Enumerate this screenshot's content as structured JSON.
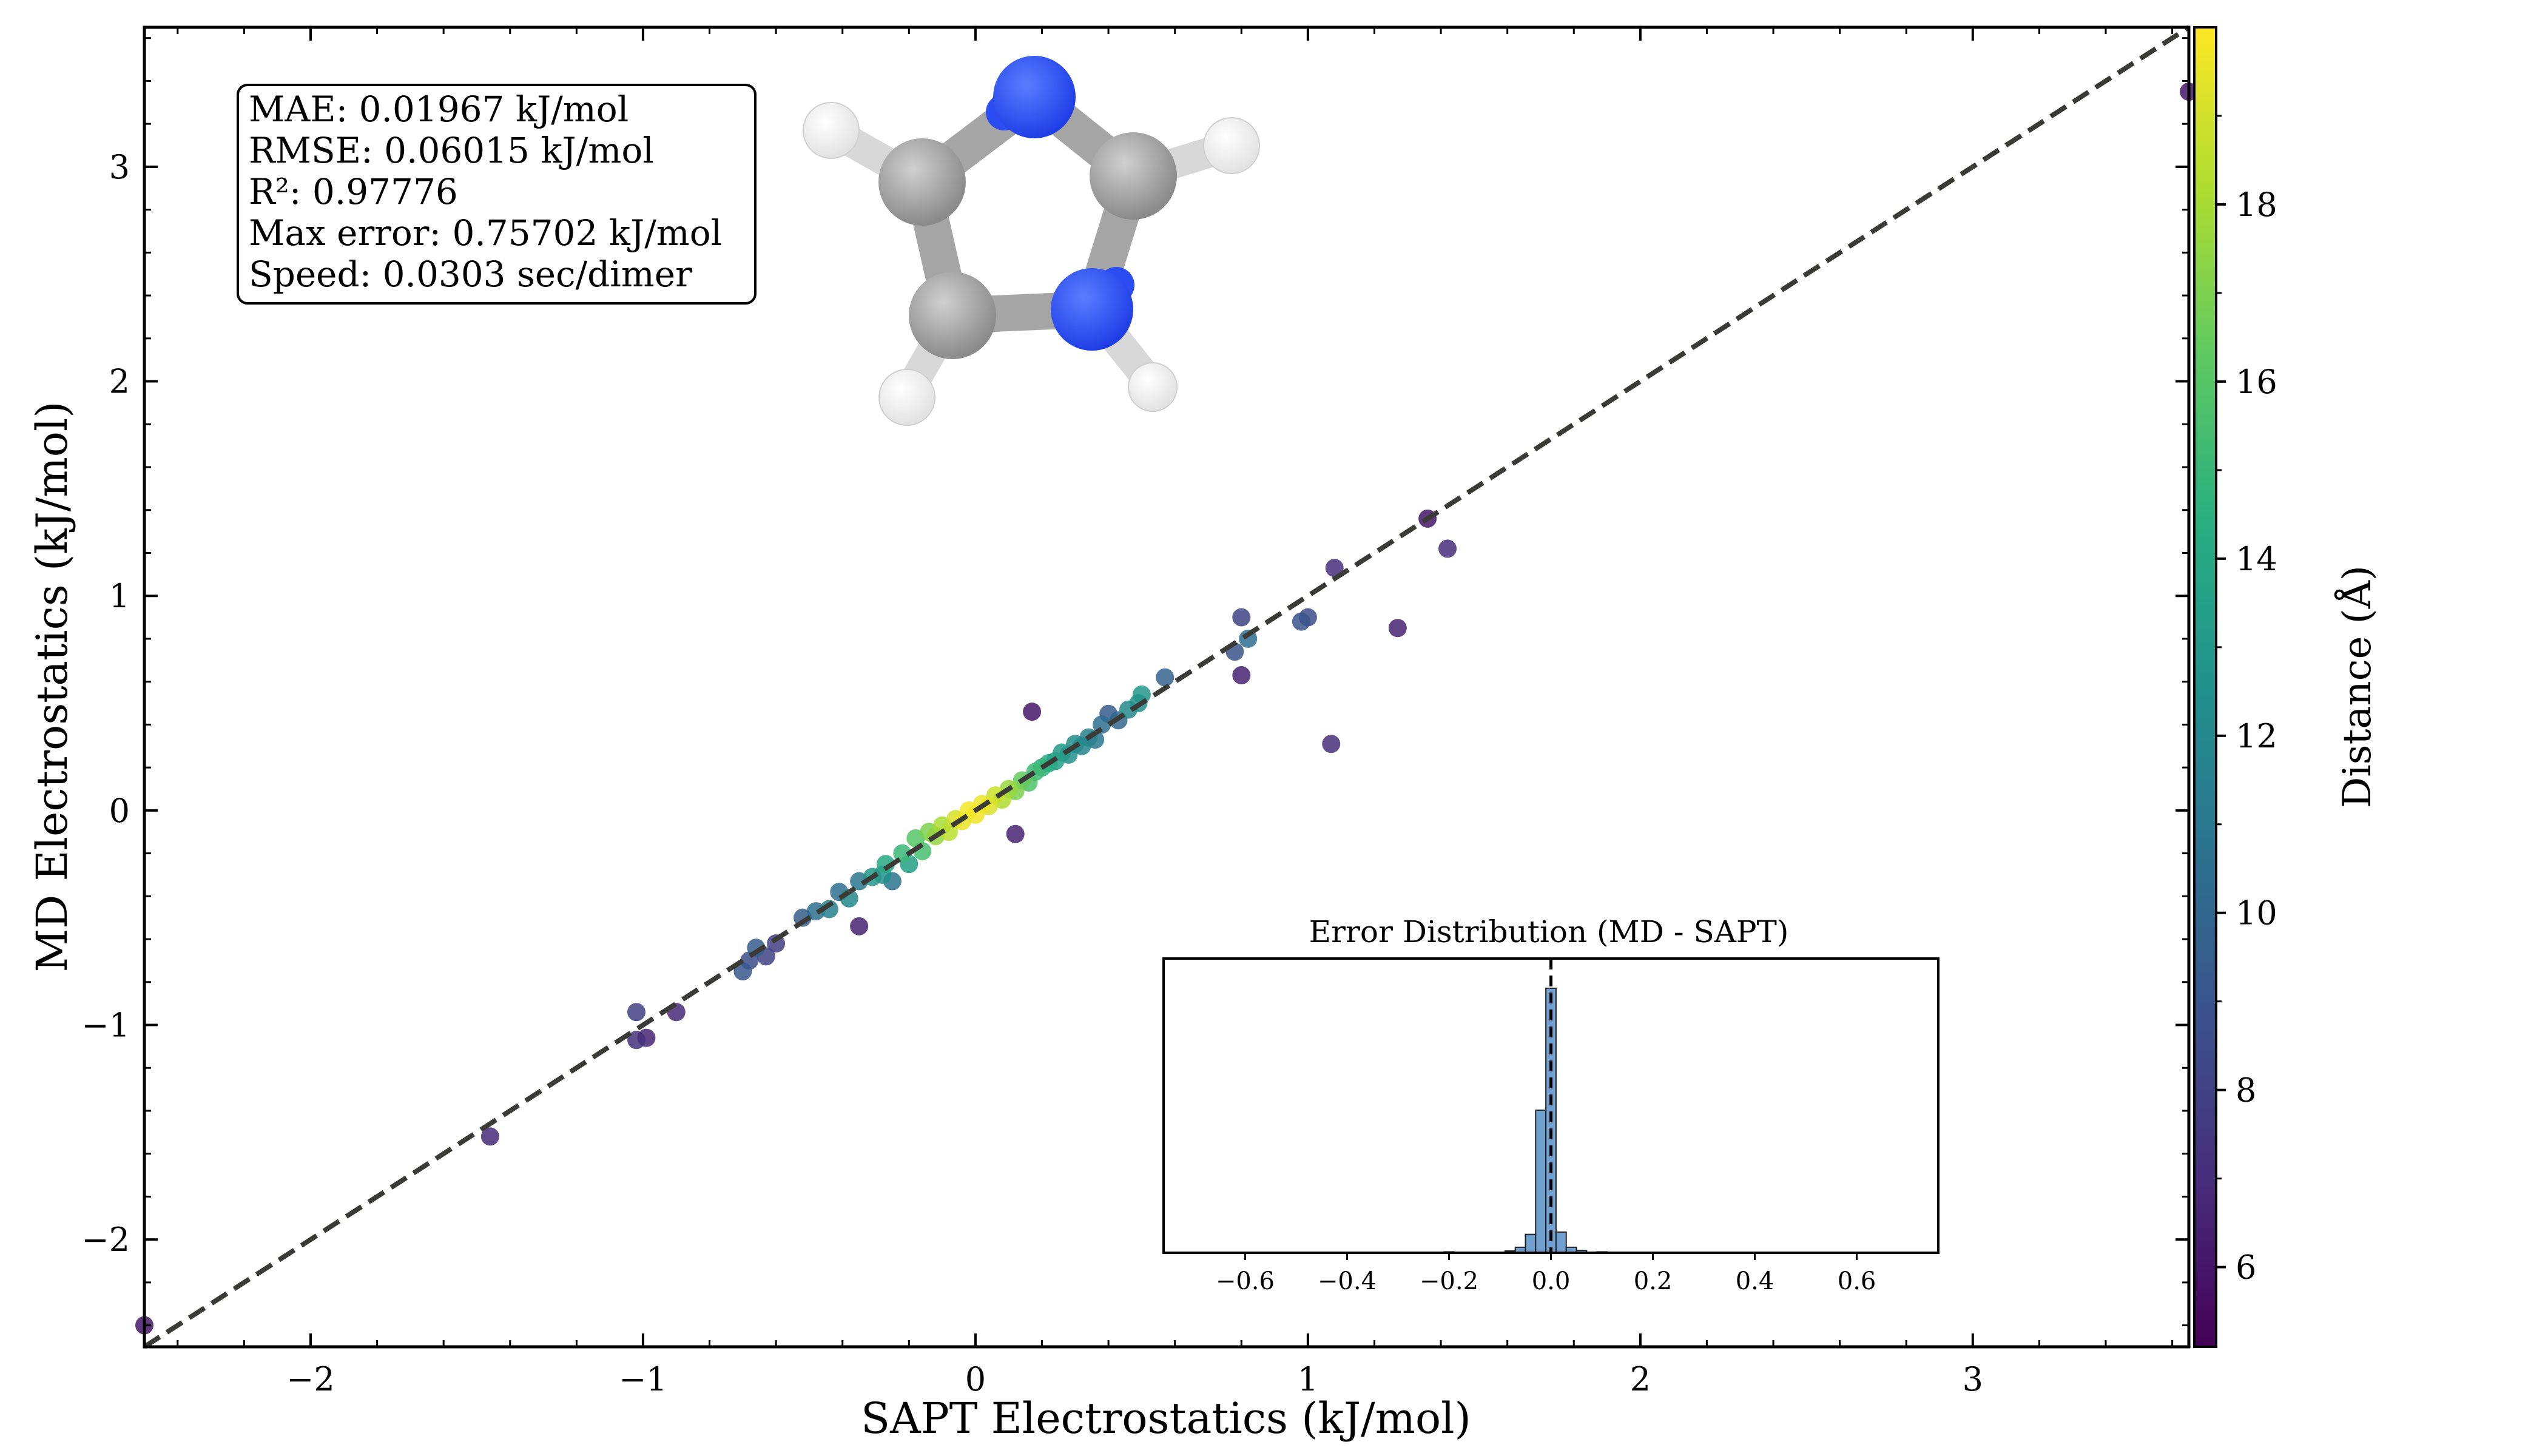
{
  "chart_data": [
    {
      "type": "scatter",
      "title": "",
      "xlabel": "SAPT Electrostatics (kJ/mol)",
      "ylabel": "MD Electrostatics (kJ/mol)",
      "xlim": [
        -2.5,
        3.65
      ],
      "ylim": [
        -2.5,
        3.65
      ],
      "xticks": [
        "−2",
        "−1",
        "0",
        "1",
        "2",
        "3"
      ],
      "yticks": [
        "−2",
        "−1",
        "0",
        "1",
        "2",
        "3"
      ],
      "grid": false,
      "reference_line": "y = x (dashed)",
      "color_dimension": {
        "label": "Distance (Å)",
        "range": [
          5.1,
          20.0
        ],
        "ticks": [
          "6",
          "8",
          "10",
          "12",
          "14",
          "16",
          "18"
        ],
        "colormap": "viridis"
      },
      "stats_box": {
        "lines": [
          "MAE: 0.01967 kJ/mol",
          "RMSE: 0.06015 kJ/mol",
          "R²: 0.97776",
          "Max error: 0.75702 kJ/mol",
          "Speed: 0.0303 sec/dimer"
        ]
      },
      "points": [
        {
          "x": -2.5,
          "y": -2.4,
          "c": 6.0
        },
        {
          "x": -1.46,
          "y": -1.52,
          "c": 6.8
        },
        {
          "x": -1.02,
          "y": -0.94,
          "c": 7.8
        },
        {
          "x": -1.02,
          "y": -1.07,
          "c": 7.2
        },
        {
          "x": -0.99,
          "y": -1.06,
          "c": 6.6
        },
        {
          "x": -0.9,
          "y": -0.94,
          "c": 6.8
        },
        {
          "x": -0.7,
          "y": -0.75,
          "c": 9.2
        },
        {
          "x": -0.68,
          "y": -0.7,
          "c": 8.5
        },
        {
          "x": -0.66,
          "y": -0.64,
          "c": 9.5
        },
        {
          "x": -0.63,
          "y": -0.68,
          "c": 8.0
        },
        {
          "x": -0.6,
          "y": -0.62,
          "c": 7.8
        },
        {
          "x": -0.52,
          "y": -0.5,
          "c": 9.5
        },
        {
          "x": -0.48,
          "y": -0.47,
          "c": 10.5
        },
        {
          "x": -0.44,
          "y": -0.46,
          "c": 11.5
        },
        {
          "x": -0.41,
          "y": -0.38,
          "c": 10.5
        },
        {
          "x": -0.38,
          "y": -0.41,
          "c": 12.0
        },
        {
          "x": -0.35,
          "y": -0.33,
          "c": 11.0
        },
        {
          "x": -0.35,
          "y": -0.54,
          "c": 6.5
        },
        {
          "x": -0.31,
          "y": -0.31,
          "c": 13.0
        },
        {
          "x": -0.28,
          "y": -0.3,
          "c": 12.5
        },
        {
          "x": -0.27,
          "y": -0.25,
          "c": 14.0
        },
        {
          "x": -0.25,
          "y": -0.33,
          "c": 10.8
        },
        {
          "x": -0.22,
          "y": -0.2,
          "c": 15.0
        },
        {
          "x": -0.2,
          "y": -0.25,
          "c": 13.5
        },
        {
          "x": -0.18,
          "y": -0.13,
          "c": 16.0
        },
        {
          "x": -0.16,
          "y": -0.19,
          "c": 15.5
        },
        {
          "x": -0.14,
          "y": -0.1,
          "c": 17.0
        },
        {
          "x": -0.12,
          "y": -0.12,
          "c": 17.5
        },
        {
          "x": -0.1,
          "y": -0.07,
          "c": 18.0
        },
        {
          "x": -0.08,
          "y": -0.1,
          "c": 18.5
        },
        {
          "x": -0.06,
          "y": -0.04,
          "c": 19.0
        },
        {
          "x": -0.04,
          "y": -0.05,
          "c": 19.5
        },
        {
          "x": -0.02,
          "y": 0.0,
          "c": 19.8
        },
        {
          "x": 0.0,
          "y": -0.02,
          "c": 19.7
        },
        {
          "x": 0.02,
          "y": 0.03,
          "c": 19.6
        },
        {
          "x": 0.04,
          "y": 0.02,
          "c": 19.2
        },
        {
          "x": 0.06,
          "y": 0.07,
          "c": 18.8
        },
        {
          "x": 0.08,
          "y": 0.05,
          "c": 18.2
        },
        {
          "x": 0.1,
          "y": 0.1,
          "c": 17.6
        },
        {
          "x": 0.12,
          "y": 0.09,
          "c": 17.0
        },
        {
          "x": 0.12,
          "y": -0.11,
          "c": 6.5
        },
        {
          "x": 0.14,
          "y": 0.14,
          "c": 16.4
        },
        {
          "x": 0.16,
          "y": 0.13,
          "c": 15.8
        },
        {
          "x": 0.17,
          "y": 0.46,
          "c": 6.0
        },
        {
          "x": 0.18,
          "y": 0.18,
          "c": 15.2
        },
        {
          "x": 0.2,
          "y": 0.2,
          "c": 14.6
        },
        {
          "x": 0.22,
          "y": 0.22,
          "c": 14.0
        },
        {
          "x": 0.24,
          "y": 0.23,
          "c": 13.5
        },
        {
          "x": 0.26,
          "y": 0.27,
          "c": 13.0
        },
        {
          "x": 0.28,
          "y": 0.26,
          "c": 12.5
        },
        {
          "x": 0.3,
          "y": 0.31,
          "c": 12.2
        },
        {
          "x": 0.32,
          "y": 0.3,
          "c": 11.8
        },
        {
          "x": 0.34,
          "y": 0.34,
          "c": 11.5
        },
        {
          "x": 0.36,
          "y": 0.33,
          "c": 11.0
        },
        {
          "x": 0.38,
          "y": 0.4,
          "c": 10.5
        },
        {
          "x": 0.4,
          "y": 0.45,
          "c": 9.5
        },
        {
          "x": 0.43,
          "y": 0.42,
          "c": 10.0
        },
        {
          "x": 0.46,
          "y": 0.47,
          "c": 12.0
        },
        {
          "x": 0.49,
          "y": 0.5,
          "c": 12.5
        },
        {
          "x": 0.5,
          "y": 0.54,
          "c": 12.8
        },
        {
          "x": 0.57,
          "y": 0.62,
          "c": 9.8
        },
        {
          "x": 0.78,
          "y": 0.74,
          "c": 9.0
        },
        {
          "x": 0.8,
          "y": 0.9,
          "c": 8.0
        },
        {
          "x": 0.8,
          "y": 0.63,
          "c": 6.5
        },
        {
          "x": 0.82,
          "y": 0.8,
          "c": 10.5
        },
        {
          "x": 0.98,
          "y": 0.88,
          "c": 9.0
        },
        {
          "x": 1.0,
          "y": 0.9,
          "c": 8.5
        },
        {
          "x": 1.07,
          "y": 0.31,
          "c": 7.0
        },
        {
          "x": 1.08,
          "y": 1.13,
          "c": 7.0
        },
        {
          "x": 1.27,
          "y": 0.85,
          "c": 6.5
        },
        {
          "x": 1.36,
          "y": 1.36,
          "c": 6.0
        },
        {
          "x": 1.42,
          "y": 1.22,
          "c": 7.0
        },
        {
          "x": 3.65,
          "y": 3.35,
          "c": 6.0
        }
      ]
    },
    {
      "type": "bar",
      "title": "Error Distribution (MD - SAPT)",
      "xlabel": "",
      "ylabel": "",
      "xlim": [
        -0.76,
        0.76
      ],
      "xticks": [
        "−0.6",
        "−0.4",
        "−0.2",
        "0.0",
        "0.2",
        "0.4",
        "0.6"
      ],
      "bin_width": 0.02,
      "reference_line": "x = 0 (dashed)",
      "bins": [
        {
          "x": -0.4,
          "count": 1
        },
        {
          "x": -0.34,
          "count": 1
        },
        {
          "x": -0.2,
          "count": 2
        },
        {
          "x": -0.08,
          "count": 4
        },
        {
          "x": -0.06,
          "count": 12
        },
        {
          "x": -0.04,
          "count": 40
        },
        {
          "x": -0.02,
          "count": 310
        },
        {
          "x": 0.0,
          "count": 575
        },
        {
          "x": 0.02,
          "count": 45
        },
        {
          "x": 0.04,
          "count": 12
        },
        {
          "x": 0.06,
          "count": 5
        },
        {
          "x": 0.1,
          "count": 2
        },
        {
          "x": 0.18,
          "count": 1
        },
        {
          "x": 0.26,
          "count": 1
        }
      ],
      "ymax": 600
    }
  ]
}
